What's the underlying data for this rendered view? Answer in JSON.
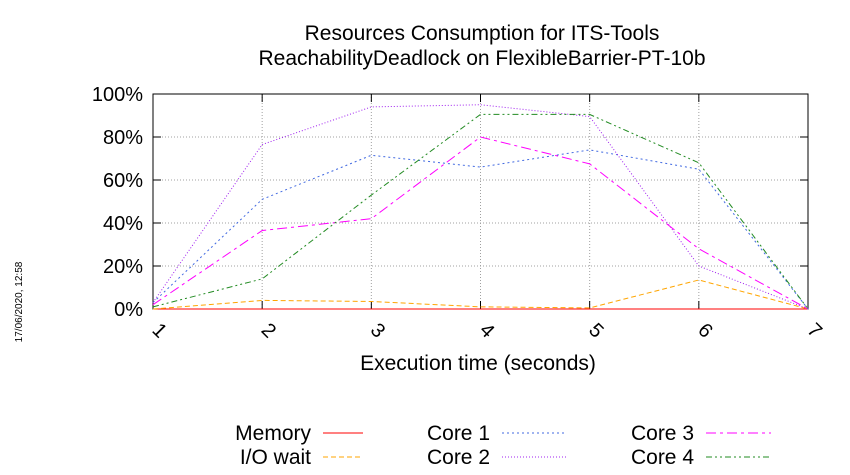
{
  "chart_data": {
    "type": "line",
    "title": "Resources Consumption for ITS-Tools",
    "subtitle": "ReachabilityDeadlock on FlexibleBarrier-PT-10b",
    "xlabel": "Execution time (seconds)",
    "ylabel": "",
    "x": [
      1,
      2,
      3,
      4,
      5,
      6,
      7
    ],
    "xlim": [
      1,
      7
    ],
    "ylim": [
      0,
      100
    ],
    "x_ticks": [
      "1",
      "2",
      "3",
      "4",
      "5",
      "6",
      "7"
    ],
    "y_ticks": [
      "0%",
      "20%",
      "40%",
      "60%",
      "80%",
      "100%"
    ],
    "grid": true,
    "legend_position": "bottom",
    "series": [
      {
        "name": "Memory",
        "color": "#ff0000",
        "dash": "none",
        "values": [
          0,
          0,
          0,
          0,
          0,
          0,
          0
        ]
      },
      {
        "name": "I/O wait",
        "color": "#ffa500",
        "dash": "5,3",
        "values": [
          0,
          4,
          3.5,
          1,
          0.5,
          13.5,
          0
        ]
      },
      {
        "name": "Core 1",
        "color": "#4169e1",
        "dash": "2,3",
        "values": [
          3,
          51,
          71.5,
          66,
          74,
          65,
          0
        ]
      },
      {
        "name": "Core 2",
        "color": "#a020f0",
        "dash": "1,2",
        "values": [
          3,
          76.5,
          94,
          95,
          89.5,
          20,
          0
        ]
      },
      {
        "name": "Core 3",
        "color": "#ff00ff",
        "dash": "10,4,3,4",
        "values": [
          2,
          36.5,
          42,
          80,
          67.5,
          28,
          0
        ]
      },
      {
        "name": "Core 4",
        "color": "#228b22",
        "dash": "6,3,2,3,2,3",
        "values": [
          1,
          14,
          53,
          90.5,
          90.5,
          68,
          0
        ]
      }
    ]
  },
  "timestamp": "17/06/2020, 12:58"
}
